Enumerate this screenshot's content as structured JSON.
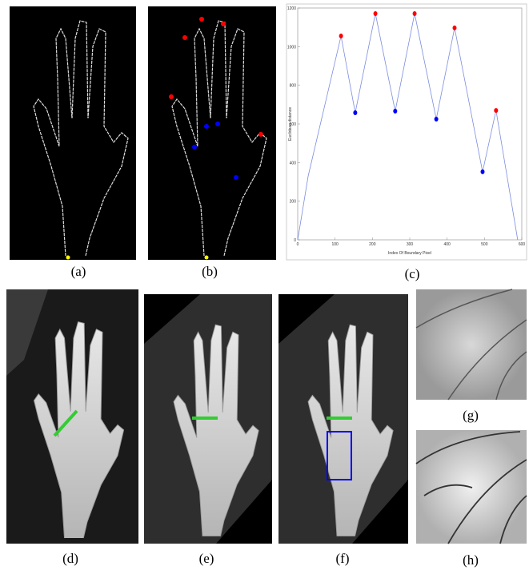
{
  "captions": {
    "a": "(a)",
    "b": "(b)",
    "c": "(c)",
    "d": "(d)",
    "e": "(e)",
    "f": "(f)",
    "g": "(g)",
    "h": "(h)"
  },
  "chart_data": {
    "type": "line",
    "x_label": "Index Of Boundary Pixel",
    "y_label": "Euclidean distance",
    "x": [
      0,
      28,
      116,
      154,
      208,
      261,
      313,
      371,
      420,
      495,
      531,
      589
    ],
    "values": [
      0,
      330,
      1055,
      658,
      1171,
      666,
      1171,
      625,
      1097,
      352,
      670,
      0
    ],
    "color": "#7b8cde",
    "peaks": {
      "x": [
        116,
        208,
        313,
        420,
        531
      ],
      "values": [
        1055,
        1171,
        1171,
        1097,
        670
      ],
      "color": "#ff0000"
    },
    "valleys": {
      "x": [
        154,
        261,
        371,
        495
      ],
      "values": [
        658,
        666,
        625,
        352
      ],
      "color": "#0000ff"
    },
    "xlim": [
      0,
      600
    ],
    "ylim": [
      0,
      1200
    ],
    "xticks": [
      0,
      100,
      200,
      300,
      400,
      500,
      600
    ],
    "yticks": [
      0,
      200,
      400,
      600,
      800,
      1000,
      1200
    ]
  }
}
